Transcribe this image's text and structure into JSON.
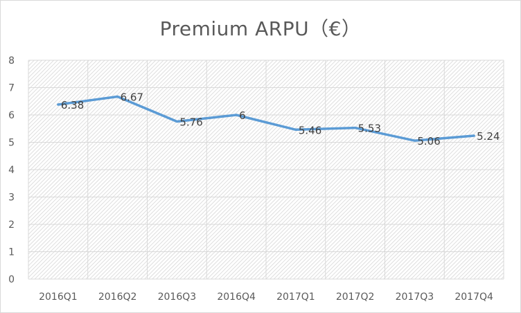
{
  "chart_data": {
    "type": "line",
    "title": "Premium ARPU（€）",
    "xlabel": "",
    "ylabel": "",
    "categories": [
      "2016Q1",
      "2016Q2",
      "2016Q3",
      "2016Q4",
      "2017Q1",
      "2017Q2",
      "2017Q3",
      "2017Q4"
    ],
    "series": [
      {
        "values": [
          6.38,
          6.67,
          5.76,
          6,
          5.46,
          5.53,
          5.06,
          5.24
        ],
        "data_labels": [
          "6.38",
          "6.67",
          "5.76",
          "6",
          "5.46",
          "5.53",
          "5.06",
          "5.24"
        ]
      }
    ],
    "ylim": [
      0,
      8
    ],
    "yticks": [
      "0",
      "1",
      "2",
      "3",
      "4",
      "5",
      "6",
      "7",
      "8"
    ],
    "grid": true,
    "legend": "none",
    "colors": {
      "line": "#5b9bd5",
      "grid": "#d9d9d9",
      "text": "#595959"
    }
  }
}
